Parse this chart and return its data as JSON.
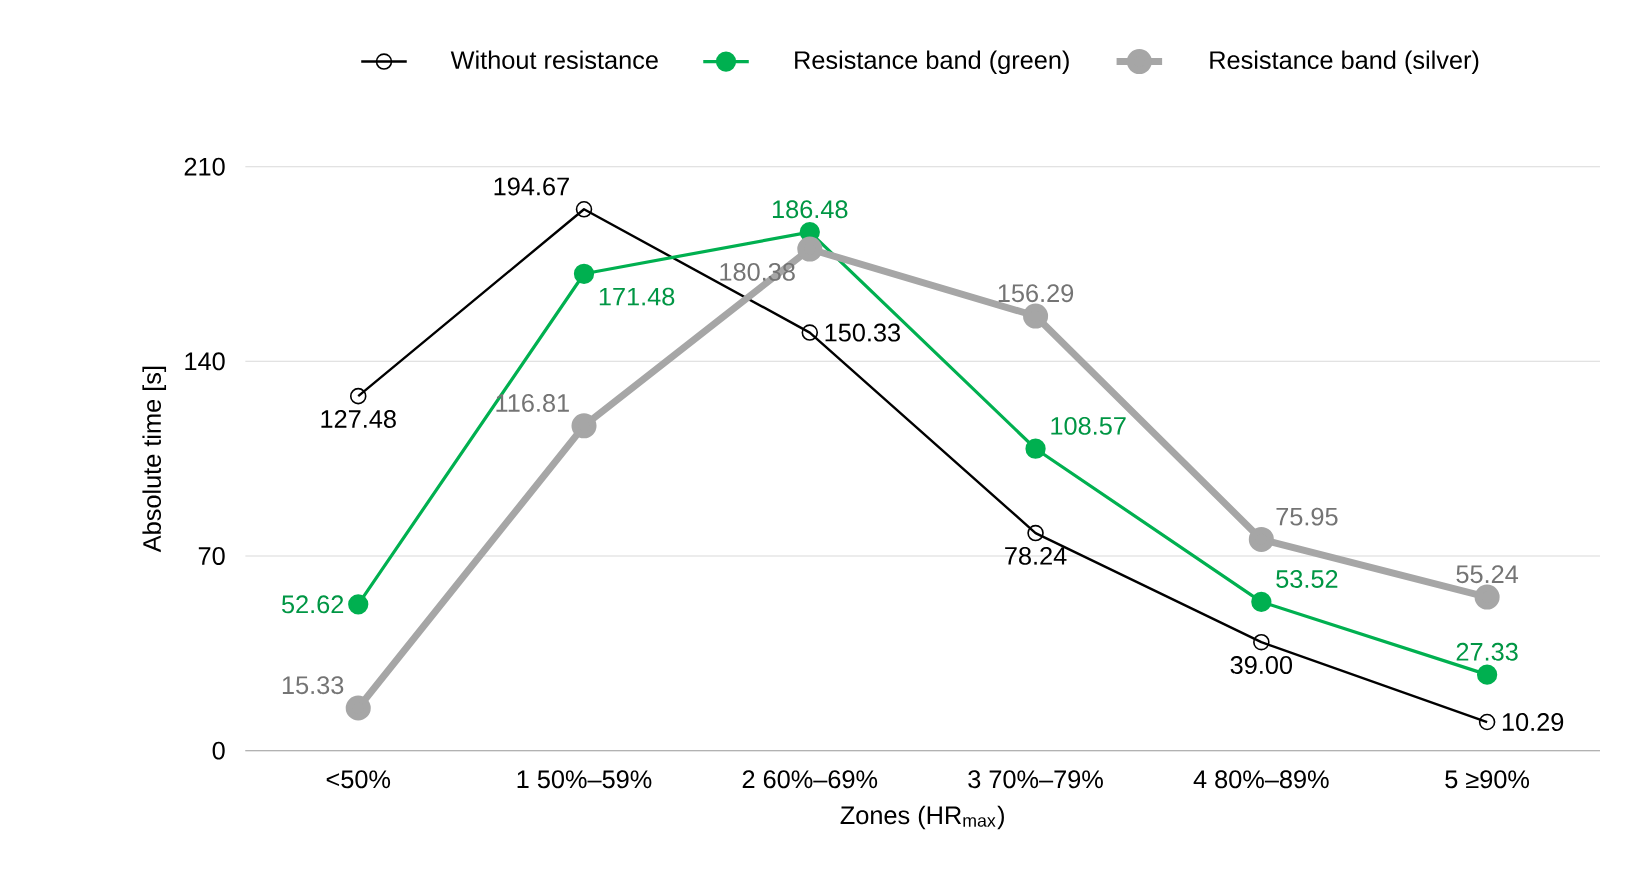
{
  "chart_data": {
    "type": "line",
    "xlabel": "Zones (HR$_{max}$)",
    "ylabel": "Absolute time [s]",
    "categories": [
      "<50%",
      "1 50%–59%",
      "2 60%–69%",
      "3 70%–79%",
      "4 80%–89%",
      "5 ≥90%"
    ],
    "series": [
      {
        "name": "Without resistance",
        "color": "#000000",
        "values": [
          127.48,
          194.67,
          150.33,
          78.24,
          39.0,
          10.29
        ],
        "value_labels": [
          "127.48",
          "194.67",
          "150.33",
          "78.24",
          "39.00",
          "10.29"
        ]
      },
      {
        "name": "Resistance band (green)",
        "color": "#00b050",
        "values": [
          52.62,
          171.48,
          186.48,
          108.57,
          53.52,
          27.33
        ],
        "value_labels": [
          "52.62",
          "171.48",
          "186.48",
          "108.57",
          "53.52",
          "27.33"
        ]
      },
      {
        "name": "Resistance band (silver)",
        "color": "#a6a6a6",
        "values": [
          15.33,
          116.81,
          180.38,
          156.29,
          75.95,
          55.24
        ],
        "value_labels": [
          "15.33",
          "116.81",
          "180.38",
          "156.29",
          "75.95",
          "55.24"
        ]
      }
    ],
    "ylim": [
      0,
      210
    ],
    "yticks": [
      0,
      70,
      140,
      210
    ],
    "grid": "y",
    "legend": "top",
    "marker": "circle",
    "line_style": "solid"
  }
}
